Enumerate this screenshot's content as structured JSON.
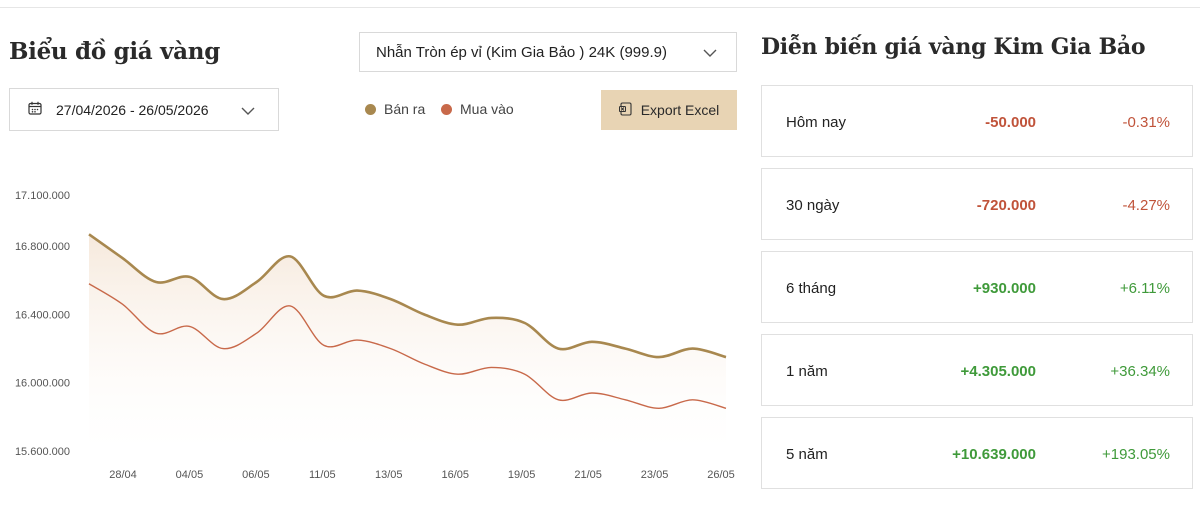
{
  "header": {
    "chart_title": "Biểu đồ giá vàng",
    "stats_title": "Diễn biến giá vàng Kim Gia Bảo"
  },
  "controls": {
    "product_selected": "Nhẫn Tròn ép vỉ (Kim Gia Bảo ) 24K (999.9)",
    "date_range": "27/04/2026 - 26/05/2026",
    "export_label": "Export Excel"
  },
  "colors": {
    "sell": "#a8884f",
    "buy": "#c8694a",
    "fill_top": "#f6e9dc",
    "accent_button": "#e8d4b4"
  },
  "chart_data": {
    "type": "area",
    "title": "",
    "xlabel": "",
    "ylabel": "",
    "ylim": [
      15600000,
      17100000
    ],
    "yticks": [
      17100000,
      16800000,
      16400000,
      16000000,
      15600000
    ],
    "ytick_labels": [
      "17.100.000",
      "16.800.000",
      "16.400.000",
      "16.000.000",
      "15.600.000"
    ],
    "x_tick_labels": [
      "28/04",
      "04/05",
      "06/05",
      "11/05",
      "13/05",
      "16/05",
      "19/05",
      "21/05",
      "23/05",
      "26/05"
    ],
    "grid": false,
    "legend_position": "top",
    "series": [
      {
        "name": "Bán ra",
        "values": [
          16870000,
          16730000,
          16590000,
          16620000,
          16490000,
          16590000,
          16740000,
          16510000,
          16540000,
          16490000,
          16400000,
          16340000,
          16380000,
          16350000,
          16200000,
          16240000,
          16200000,
          16150000,
          16200000,
          16150000
        ]
      },
      {
        "name": "Mua vào",
        "values": [
          16580000,
          16460000,
          16290000,
          16330000,
          16200000,
          16290000,
          16450000,
          16220000,
          16250000,
          16200000,
          16110000,
          16050000,
          16090000,
          16050000,
          15900000,
          15940000,
          15900000,
          15850000,
          15900000,
          15850000
        ]
      }
    ]
  },
  "stats": [
    {
      "label": "Hôm nay",
      "value": "-50.000",
      "pct": "-0.31%",
      "trend": "neg"
    },
    {
      "label": "30 ngày",
      "value": "-720.000",
      "pct": "-4.27%",
      "trend": "neg"
    },
    {
      "label": "6 tháng",
      "value": "+930.000",
      "pct": "+6.11%",
      "trend": "pos"
    },
    {
      "label": "1 năm",
      "value": "+4.305.000",
      "pct": "+36.34%",
      "trend": "pos"
    },
    {
      "label": "5 năm",
      "value": "+10.639.000",
      "pct": "+193.05%",
      "trend": "pos"
    }
  ]
}
